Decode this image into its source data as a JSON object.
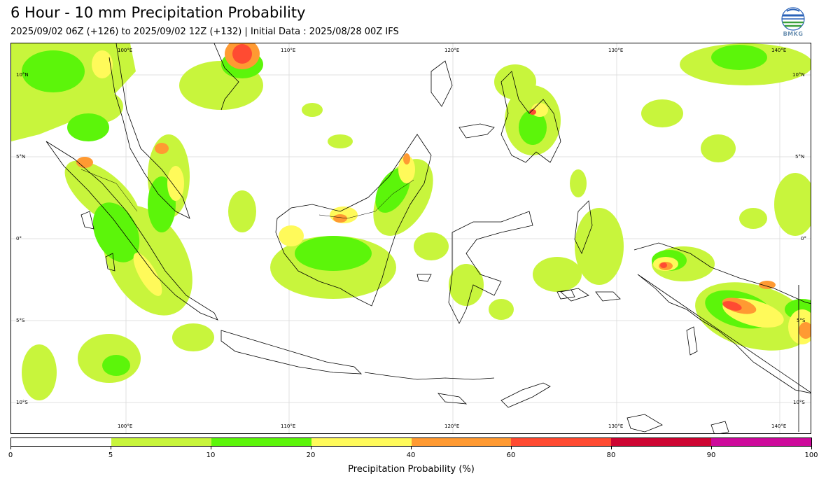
{
  "header": {
    "title": "6 Hour - 10 mm Precipitation Probability",
    "subtitle": "2025/09/02 06Z (+126) to 2025/09/02 12Z (+132) | Initial Data : 2025/08/28 00Z IFS",
    "logo_text": "BMKG"
  },
  "map": {
    "lon_labels": [
      "100°E",
      "110°E",
      "120°E",
      "130°E",
      "140°E"
    ],
    "lat_labels": [
      "10°N",
      "5°N",
      "0°",
      "5°S",
      "10°S"
    ],
    "gridlines": true
  },
  "colorbar": {
    "label": "Precipitation Probability (%)",
    "ticks": [
      "0",
      "5",
      "10",
      "20",
      "40",
      "60",
      "80",
      "90",
      "100"
    ],
    "bins": [
      {
        "from": 0,
        "to": 5,
        "color": "#ffffff"
      },
      {
        "from": 5,
        "to": 10,
        "color": "#c8f53c"
      },
      {
        "from": 10,
        "to": 20,
        "color": "#5cf50a"
      },
      {
        "from": 20,
        "to": 40,
        "color": "#fffa5a"
      },
      {
        "from": 40,
        "to": 60,
        "color": "#ff9a32"
      },
      {
        "from": 60,
        "to": 80,
        "color": "#ff4b32"
      },
      {
        "from": 80,
        "to": 90,
        "color": "#cd0532"
      },
      {
        "from": 90,
        "to": 100,
        "color": "#cd0a9b"
      }
    ]
  }
}
